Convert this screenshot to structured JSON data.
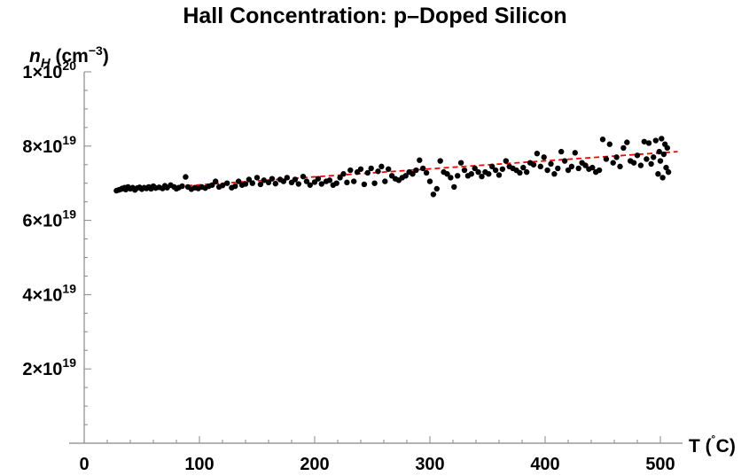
{
  "chart_data": {
    "type": "scatter",
    "title": "Hall Concentration: p–Doped Silicon",
    "ylabel": {
      "base": "n",
      "sub": "H",
      "unit": " (cm",
      "sup": "−3",
      "close": ")"
    },
    "xlabel": {
      "main": "T (",
      "sup": "˚",
      "close": "C)"
    },
    "xlim": [
      -15,
      520
    ],
    "ylim": [
      0,
      1e+20
    ],
    "log_y": false,
    "grid": false,
    "x_ticks": [
      {
        "value": 0,
        "label": "0"
      },
      {
        "value": 100,
        "label": "100"
      },
      {
        "value": 200,
        "label": "200"
      },
      {
        "value": 300,
        "label": "300"
      },
      {
        "value": 400,
        "label": "400"
      },
      {
        "value": 500,
        "label": "500"
      }
    ],
    "y_ticks": [
      {
        "value": 2e+19,
        "mant": "2",
        "exp": "19"
      },
      {
        "value": 4e+19,
        "mant": "4",
        "exp": "19"
      },
      {
        "value": 6e+19,
        "mant": "6",
        "exp": "19"
      },
      {
        "value": 8e+19,
        "mant": "8",
        "exp": "19"
      },
      {
        "value": 1e+20,
        "mant": "1",
        "exp": "20"
      }
    ],
    "series": [
      {
        "kind": "points",
        "color": "#000000",
        "points": [
          [
            28,
            6.8e+19
          ],
          [
            30,
            6.82e+19
          ],
          [
            32,
            6.84e+19
          ],
          [
            33,
            6.86e+19
          ],
          [
            35,
            6.88e+19
          ],
          [
            36,
            6.83e+19
          ],
          [
            38,
            6.9e+19
          ],
          [
            40,
            6.85e+19
          ],
          [
            42,
            6.88e+19
          ],
          [
            44,
            6.82e+19
          ],
          [
            46,
            6.87e+19
          ],
          [
            48,
            6.89e+19
          ],
          [
            50,
            6.84e+19
          ],
          [
            52,
            6.88e+19
          ],
          [
            54,
            6.86e+19
          ],
          [
            56,
            6.9e+19
          ],
          [
            58,
            6.85e+19
          ],
          [
            60,
            6.92e+19
          ],
          [
            62,
            6.87e+19
          ],
          [
            65,
            6.89e+19
          ],
          [
            68,
            6.86e+19
          ],
          [
            70,
            6.93e+19
          ],
          [
            72,
            6.88e+19
          ],
          [
            75,
            6.95e+19
          ],
          [
            78,
            6.9e+19
          ],
          [
            80,
            6.85e+19
          ],
          [
            82,
            6.88e+19
          ],
          [
            85,
            6.92e+19
          ],
          [
            88,
            7.17e+19
          ],
          [
            90,
            6.9e+19
          ],
          [
            93,
            6.84e+19
          ],
          [
            96,
            6.88e+19
          ],
          [
            99,
            6.86e+19
          ],
          [
            102,
            6.9e+19
          ],
          [
            105,
            6.87e+19
          ],
          [
            108,
            6.92e+19
          ],
          [
            111,
            6.95e+19
          ],
          [
            114,
            7.05e+19
          ],
          [
            117,
            6.9e+19
          ],
          [
            120,
            6.94e+19
          ],
          [
            124,
            7e+19
          ],
          [
            128,
            6.88e+19
          ],
          [
            131,
            6.92e+19
          ],
          [
            134,
            7.05e+19
          ],
          [
            137,
            6.95e+19
          ],
          [
            140,
            6.98e+19
          ],
          [
            143,
            7.1e+19
          ],
          [
            146,
            7e+19
          ],
          [
            150,
            7.15e+19
          ],
          [
            153,
            6.97e+19
          ],
          [
            156,
            7.08e+19
          ],
          [
            160,
            7.02e+19
          ],
          [
            163,
            7.12e+19
          ],
          [
            166,
            6.99e+19
          ],
          [
            170,
            7.1e+19
          ],
          [
            173,
            7.05e+19
          ],
          [
            176,
            7.15e+19
          ],
          [
            180,
            7.02e+19
          ],
          [
            183,
            7.1e+19
          ],
          [
            186,
            6.98e+19
          ],
          [
            190,
            7.18e+19
          ],
          [
            193,
            7.05e+19
          ],
          [
            196,
            6.95e+19
          ],
          [
            200,
            7.03e+19
          ],
          [
            203,
            7.12e+19
          ],
          [
            206,
            6.98e+19
          ],
          [
            210,
            7.05e+19
          ],
          [
            213,
            7.08e+19
          ],
          [
            216,
            6.95e+19
          ],
          [
            219,
            7e+19
          ],
          [
            222,
            7.15e+19
          ],
          [
            225,
            7.25e+19
          ],
          [
            228,
            7.02e+19
          ],
          [
            231,
            7.35e+19
          ],
          [
            234,
            7.05e+19
          ],
          [
            237,
            7.3e+19
          ],
          [
            240,
            7.38e+19
          ],
          [
            243,
            6.97e+19
          ],
          [
            246,
            7.28e+19
          ],
          [
            249,
            7.4e+19
          ],
          [
            252,
            7e+19
          ],
          [
            255,
            7.32e+19
          ],
          [
            258,
            7.45e+19
          ],
          [
            261,
            7.05e+19
          ],
          [
            264,
            7.38e+19
          ],
          [
            267,
            7.2e+19
          ],
          [
            270,
            7.12e+19
          ],
          [
            273,
            7.08e+19
          ],
          [
            276,
            7.15e+19
          ],
          [
            279,
            7.2e+19
          ],
          [
            282,
            7.3e+19
          ],
          [
            285,
            7.25e+19
          ],
          [
            288,
            7.35e+19
          ],
          [
            291,
            7.62e+19
          ],
          [
            294,
            7.4e+19
          ],
          [
            297,
            7.28e+19
          ],
          [
            300,
            7.05e+19
          ],
          [
            303,
            6.7e+19
          ],
          [
            306,
            6.85e+19
          ],
          [
            309,
            7.6e+19
          ],
          [
            312,
            7.3e+19
          ],
          [
            315,
            7.25e+19
          ],
          [
            318,
            7.15e+19
          ],
          [
            321,
            6.9e+19
          ],
          [
            324,
            7.2e+19
          ],
          [
            327,
            7.55e+19
          ],
          [
            330,
            7.35e+19
          ],
          [
            333,
            7.2e+19
          ],
          [
            336,
            7.25e+19
          ],
          [
            339,
            7.4e+19
          ],
          [
            342,
            7.3e+19
          ],
          [
            345,
            7.18e+19
          ],
          [
            348,
            7.3e+19
          ],
          [
            351,
            7.25e+19
          ],
          [
            354,
            7.45e+19
          ],
          [
            357,
            7.35e+19
          ],
          [
            360,
            7.22e+19
          ],
          [
            363,
            7.38e+19
          ],
          [
            366,
            7.6e+19
          ],
          [
            369,
            7.45e+19
          ],
          [
            372,
            7.4e+19
          ],
          [
            375,
            7.35e+19
          ],
          [
            378,
            7.28e+19
          ],
          [
            381,
            7.42e+19
          ],
          [
            384,
            7.3e+19
          ],
          [
            387,
            7.55e+19
          ],
          [
            390,
            7.5e+19
          ],
          [
            393,
            7.8e+19
          ],
          [
            396,
            7.45e+19
          ],
          [
            399,
            7.7e+19
          ],
          [
            402,
            7.35e+19
          ],
          [
            405,
            7.52e+19
          ],
          [
            408,
            7.25e+19
          ],
          [
            411,
            7.4e+19
          ],
          [
            414,
            7.85e+19
          ],
          [
            417,
            7.6e+19
          ],
          [
            420,
            7.35e+19
          ],
          [
            423,
            7.45e+19
          ],
          [
            426,
            7.82e+19
          ],
          [
            429,
            7.4e+19
          ],
          [
            432,
            7.55e+19
          ],
          [
            435,
            7.48e+19
          ],
          [
            438,
            7.38e+19
          ],
          [
            441,
            7.42e+19
          ],
          [
            444,
            7.3e+19
          ],
          [
            447,
            7.35e+19
          ],
          [
            450,
            8.18e+19
          ],
          [
            453,
            7.65e+19
          ],
          [
            456,
            8.05e+19
          ],
          [
            459,
            7.55e+19
          ],
          [
            462,
            7.7e+19
          ],
          [
            465,
            7.45e+19
          ],
          [
            468,
            7.95e+19
          ],
          [
            471,
            8.1e+19
          ],
          [
            474,
            7.6e+19
          ],
          [
            477,
            7.55e+19
          ],
          [
            480,
            7.75e+19
          ],
          [
            483,
            7.48e+19
          ],
          [
            486,
            8.12e+19
          ],
          [
            488,
            7.65e+19
          ],
          [
            490,
            8.08e+19
          ],
          [
            492,
            7.52e+19
          ],
          [
            494,
            7.7e+19
          ],
          [
            496,
            8.15e+19
          ],
          [
            498,
            7.25e+19
          ],
          [
            499,
            7.85e+19
          ],
          [
            500,
            7.6e+19
          ],
          [
            501,
            8.2e+19
          ],
          [
            502,
            7.15e+19
          ],
          [
            503,
            7.78e+19
          ],
          [
            504,
            8.05e+19
          ],
          [
            505,
            7.42e+19
          ],
          [
            506,
            7.95e+19
          ],
          [
            507,
            7.3e+19
          ]
        ]
      },
      {
        "kind": "fit-line",
        "color": "#ff0000",
        "dash": "dashed",
        "points": [
          [
            28,
            6.8e+19
          ],
          [
            515,
            7.85e+19
          ]
        ]
      }
    ]
  }
}
